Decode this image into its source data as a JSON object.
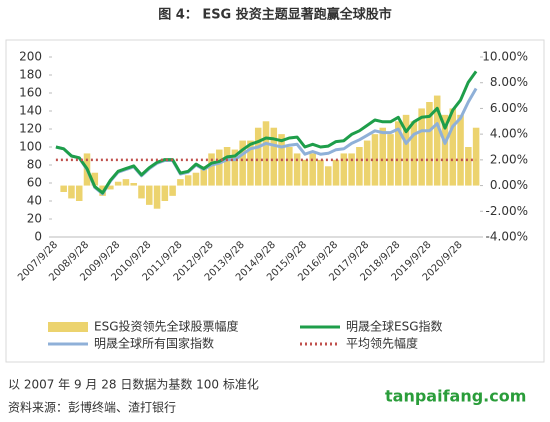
{
  "chart_data": {
    "type": "combo",
    "title": "图 4： ESG 投资主题显著跑赢全球股市",
    "categories": [
      "2007/9/28",
      null,
      null,
      null,
      "2008/9/28",
      null,
      null,
      null,
      "2009/9/28",
      null,
      null,
      null,
      "2010/9/28",
      null,
      null,
      null,
      "2011/9/28",
      null,
      null,
      null,
      "2012/9/28",
      null,
      null,
      null,
      "2013/9/28",
      null,
      null,
      null,
      "2014/9/28",
      null,
      null,
      null,
      "2015/9/28",
      null,
      null,
      null,
      "2016/9/28",
      null,
      null,
      null,
      "2017/9/28",
      null,
      null,
      null,
      "2018/9/28",
      null,
      null,
      null,
      "2019/9/28",
      null,
      null,
      null,
      "2020/9/28",
      null,
      null
    ],
    "series": [
      {
        "name": "ESG投资领先全球股票幅度",
        "type": "bar",
        "axis": "y2",
        "color": "#ecd36e",
        "values": [
          0,
          -0.5,
          -1,
          -1.2,
          2.5,
          1,
          -0.8,
          -0.3,
          0.3,
          0.5,
          0.2,
          -1,
          -1.5,
          -1.8,
          -1.2,
          -0.8,
          0.5,
          0.8,
          1,
          1.5,
          2.5,
          2.8,
          3,
          2.8,
          3.5,
          3.5,
          4.5,
          5,
          4.5,
          4,
          3,
          2.5,
          2,
          2.5,
          2,
          1.5,
          2,
          2.5,
          2.5,
          3,
          3.5,
          4,
          4.5,
          4,
          5,
          5.5,
          5,
          6,
          6.5,
          7,
          5.5,
          6,
          5.5,
          3,
          4.5
        ]
      },
      {
        "name": "明晟全球ESG指数",
        "type": "line",
        "color": "#1e9e4a",
        "values": [
          100,
          98,
          90,
          88,
          76,
          56,
          49,
          63,
          73,
          76,
          79,
          69,
          77,
          83,
          86,
          86,
          71,
          73,
          81,
          76,
          82,
          84,
          89,
          90,
          97,
          103,
          106,
          110,
          109,
          107,
          110,
          111,
          100,
          103,
          100,
          101,
          106,
          107,
          114,
          118,
          124,
          130,
          128,
          128,
          133,
          117,
          128,
          133,
          134,
          143,
          121,
          141,
          152,
          172,
          184
        ]
      },
      {
        "name": "明晟全球所有国家指数",
        "type": "line",
        "color": "#8fb0d8",
        "values": [
          100,
          98,
          90,
          88,
          75,
          55,
          48,
          62,
          72,
          75,
          78,
          68,
          76,
          82,
          85,
          85,
          70,
          72,
          80,
          75,
          80,
          82,
          86,
          86,
          92,
          98,
          100,
          104,
          102,
          100,
          102,
          103,
          92,
          95,
          92,
          93,
          97,
          98,
          104,
          108,
          113,
          118,
          116,
          116,
          120,
          104,
          114,
          118,
          118,
          126,
          104,
          123,
          132,
          150,
          165
        ]
      },
      {
        "name": "平均领先幅度",
        "type": "dotted",
        "axis": "y2",
        "color": "#c0504d",
        "values": [
          2,
          2,
          2,
          2,
          2,
          2,
          2,
          2,
          2,
          2,
          2,
          2,
          2,
          2,
          2,
          2,
          2,
          2,
          2,
          2,
          2,
          2,
          2,
          2,
          2,
          2,
          2,
          2,
          2,
          2,
          2,
          2,
          2,
          2,
          2,
          2,
          2,
          2,
          2,
          2,
          2,
          2,
          2,
          2,
          2,
          2,
          2,
          2,
          2,
          2,
          2,
          2,
          2,
          2,
          2
        ]
      }
    ],
    "ylim": [
      0,
      200
    ],
    "yticks": [
      0,
      20,
      40,
      60,
      80,
      100,
      120,
      140,
      160,
      180,
      200
    ],
    "y2lim": [
      -4,
      10
    ],
    "y2ticks": [
      {
        "value": -4,
        "label": "-4.00%"
      },
      {
        "value": -2,
        "label": "-2.00%"
      },
      {
        "value": 0,
        "label": "0.00%"
      },
      {
        "value": 2,
        "label": "2.00%"
      },
      {
        "value": 4,
        "label": "4.00%"
      },
      {
        "value": 6,
        "label": "6.00%"
      },
      {
        "value": 8,
        "label": "8.00%"
      },
      {
        "value": 10,
        "label": "10.00%"
      }
    ],
    "notes": [
      "以 2007 年 9 月 28 日数据为基数 100 标准化",
      "资料来源：彭博终端、渣打银行"
    ],
    "watermark": "tanpaifang.com"
  }
}
